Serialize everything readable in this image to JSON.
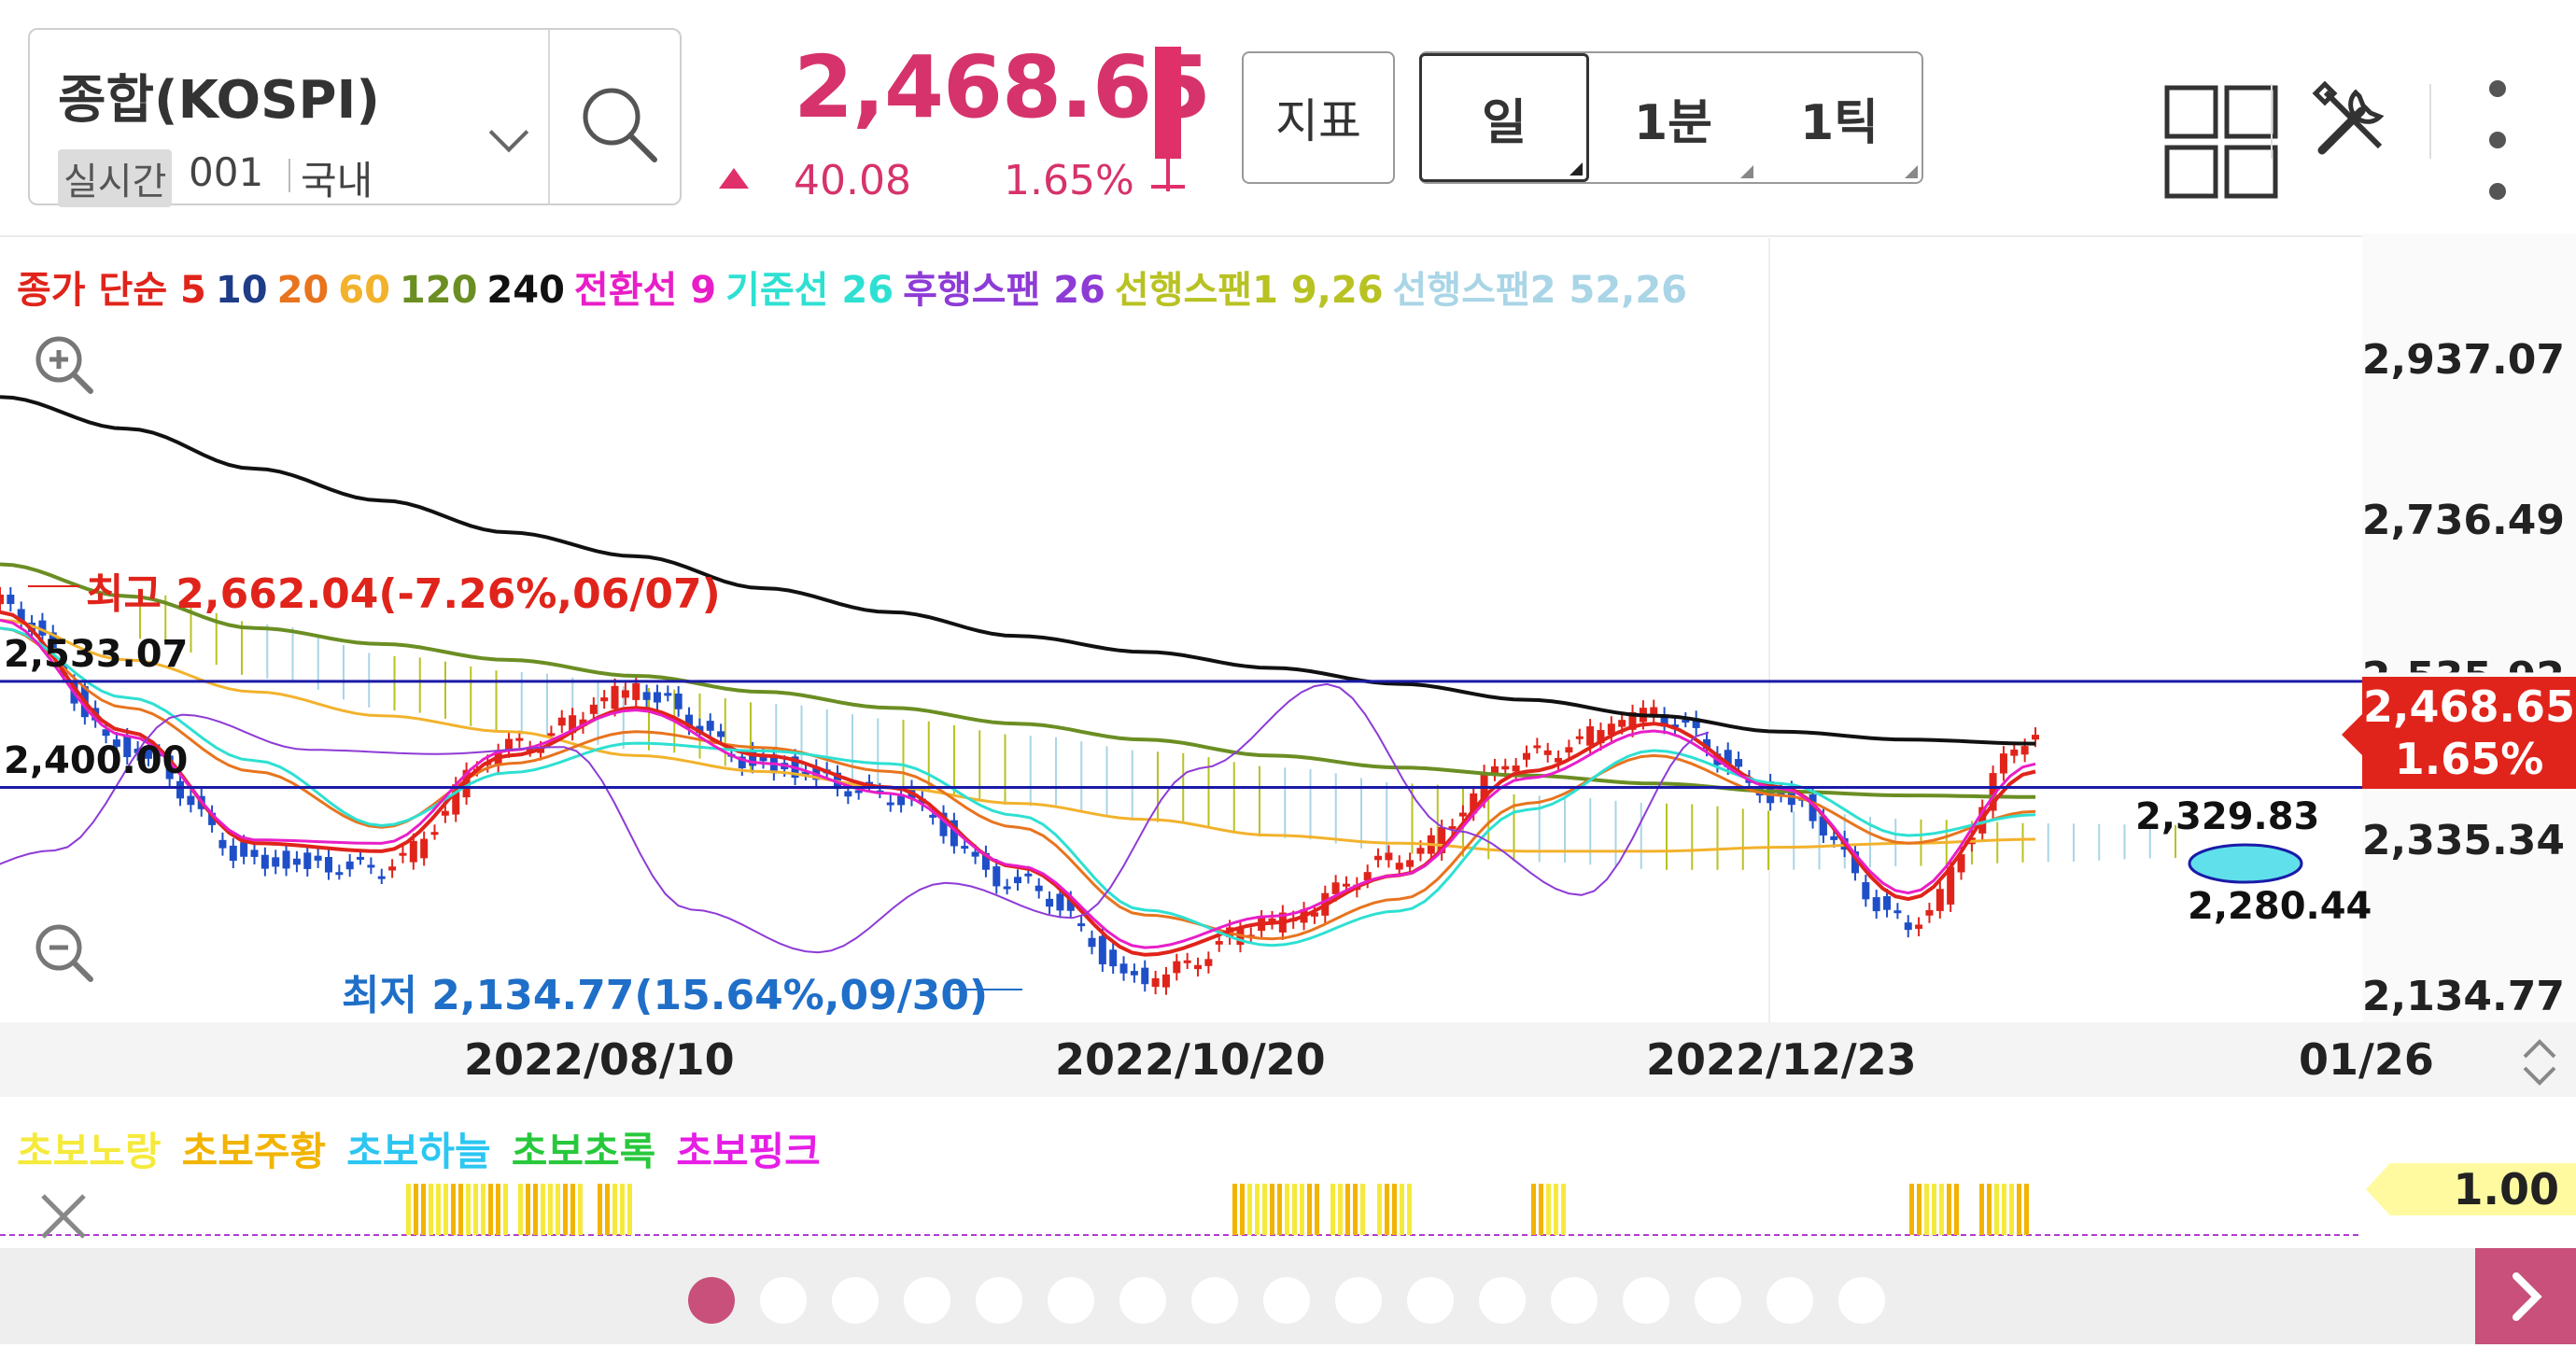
{
  "header": {
    "symbol_name": "종합(KOSPI)",
    "realtime_tag": "실시간",
    "code": "001",
    "market": "국내",
    "price": "2,468.65",
    "change": "40.08",
    "change_pct": "1.65%",
    "indicator_button": "지표",
    "periods": [
      "일",
      "1분",
      "1틱"
    ],
    "active_period": "일"
  },
  "legend": [
    {
      "text": "종가 단순 5",
      "color": "#e0241b"
    },
    {
      "text": "10",
      "color": "#1f3c88"
    },
    {
      "text": "20",
      "color": "#e8741e"
    },
    {
      "text": "60",
      "color": "#f2b22c"
    },
    {
      "text": "120",
      "color": "#6b8e23"
    },
    {
      "text": "240",
      "color": "#111111"
    },
    {
      "text": "전환선 9",
      "color": "#e91ec8"
    },
    {
      "text": "기준선 26",
      "color": "#2ee0d2"
    },
    {
      "text": "후행스팬 26",
      "color": "#8e3bd6"
    },
    {
      "text": "선행스팬1 9,26",
      "color": "#b8c222"
    },
    {
      "text": "선행스팬2 52,26",
      "color": "#a9d5e6"
    }
  ],
  "visible_count": "185",
  "chart_data": {
    "type": "line",
    "price_axis": [
      "2,937.07",
      "2,736.49",
      "2,535.92",
      "2,335.34",
      "2,134.77"
    ],
    "ylim": [
      2134.77,
      2937.07
    ],
    "date_ticks": [
      "2022/08/10",
      "2022/10/20",
      "2022/12/23",
      "01/26"
    ],
    "high_annotation": "최고 2,662.04(-7.26%,06/07)",
    "low_annotation": "최저 2,134.77(15.64%,09/30)",
    "hline_labels": [
      "2,533.07",
      "2,400.00"
    ],
    "hlines": [
      2533.07,
      2400.0
    ],
    "forecast_labels": [
      "2,329.83",
      "2,280.44"
    ],
    "current_price_tag": [
      "2,468.65",
      "1.65%"
    ],
    "ma240": [
      2890,
      2850,
      2800,
      2760,
      2720,
      2690,
      2650,
      2620,
      2590,
      2570,
      2550,
      2530,
      2510,
      2490,
      2470,
      2460,
      2455
    ],
    "ma120": [
      2680,
      2640,
      2600,
      2580,
      2560,
      2540,
      2520,
      2500,
      2480,
      2460,
      2440,
      2425,
      2415,
      2405,
      2395,
      2390,
      2388
    ],
    "ma60": [
      2610,
      2560,
      2520,
      2490,
      2470,
      2440,
      2420,
      2400,
      2380,
      2360,
      2340,
      2330,
      2320,
      2320,
      2325,
      2330,
      2335
    ],
    "ma20": [
      2600,
      2500,
      2420,
      2350,
      2430,
      2470,
      2450,
      2420,
      2350,
      2240,
      2210,
      2260,
      2380,
      2440,
      2390,
      2330,
      2370
    ],
    "ma5": [
      2620,
      2470,
      2330,
      2320,
      2440,
      2500,
      2440,
      2400,
      2300,
      2190,
      2230,
      2290,
      2420,
      2480,
      2400,
      2260,
      2420
    ],
    "close": [
      2630,
      2450,
      2310,
      2300,
      2450,
      2520,
      2430,
      2390,
      2280,
      2160,
      2230,
      2310,
      2440,
      2490,
      2390,
      2230,
      2468
    ]
  },
  "sub_panel": {
    "legend": [
      {
        "text": "초보노랑",
        "color": "#f5ea3c"
      },
      {
        "text": "초보주황",
        "color": "#f2b400"
      },
      {
        "text": "초보하늘",
        "color": "#2cc6f2"
      },
      {
        "text": "초보초록",
        "color": "#28c83c"
      },
      {
        "text": "초보핑크",
        "color": "#e61ee6"
      }
    ],
    "value": "1.00"
  },
  "pager": {
    "count": 17,
    "active": 0
  },
  "icons": {
    "search": "search-icon",
    "grid": "grid-layout-icon",
    "tools": "tools-icon",
    "more": "more-vertical-icon",
    "zoom_in": "zoom-in-icon",
    "zoom_out": "zoom-out-icon",
    "close": "close-icon",
    "next": "chevron-right-icon"
  }
}
